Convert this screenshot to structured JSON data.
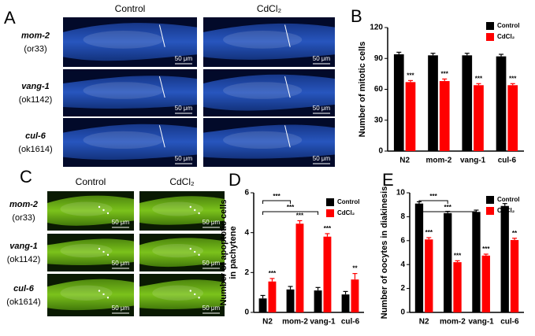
{
  "panels": {
    "A": {
      "label": "A",
      "columns": [
        "Control",
        "CdCl₂"
      ],
      "scale_bar": "50 μm",
      "rows": [
        {
          "gene": "mom-2",
          "allele": "(or33)"
        },
        {
          "gene": "vang-1",
          "allele": "(ok1142)"
        },
        {
          "gene": "cul-6",
          "allele": "(ok1614)"
        }
      ]
    },
    "C": {
      "label": "C",
      "columns": [
        "Control",
        "CdCl₂"
      ],
      "scale_bar": "50 μm",
      "rows": [
        {
          "gene": "mom-2",
          "allele": "(or33)"
        },
        {
          "gene": "vang-1",
          "allele": "(ok1142)"
        },
        {
          "gene": "cul-6",
          "allele": "(ok1614)"
        }
      ]
    }
  },
  "chart_data": [
    {
      "type": "bar",
      "panel": "B",
      "y_label": "Number of mitotic cells",
      "categories": [
        "N2",
        "mom-2",
        "vang-1",
        "cul-6"
      ],
      "series": [
        {
          "name": "Control",
          "color": "#000000",
          "values": [
            94,
            93,
            93,
            92
          ],
          "errors": [
            2,
            2,
            2,
            2
          ]
        },
        {
          "name": "CdCl₂",
          "color": "#ff0000",
          "values": [
            67,
            68,
            64,
            64
          ],
          "errors": [
            1.5,
            2,
            1.5,
            1.5
          ],
          "significance": [
            "***",
            "***",
            "***",
            "***"
          ]
        }
      ],
      "ylim": [
        0,
        120
      ],
      "yticks": [
        0,
        30,
        60,
        90,
        120
      ],
      "legend": "top-right"
    },
    {
      "type": "bar",
      "panel": "D",
      "y_label": [
        "Number of apoptotic cells",
        "in pachytene"
      ],
      "categories": [
        "N2",
        "mom-2",
        "vang-1",
        "cul-6"
      ],
      "series": [
        {
          "name": "Control",
          "color": "#000000",
          "values": [
            0.7,
            1.15,
            1.1,
            0.9
          ],
          "errors": [
            0.15,
            0.15,
            0.15,
            0.15
          ]
        },
        {
          "name": "CdCl₂",
          "color": "#ff0000",
          "values": [
            1.55,
            4.45,
            3.8,
            1.65
          ],
          "errors": [
            0.15,
            0.15,
            0.15,
            0.3
          ],
          "significance": [
            "***",
            "***",
            "***",
            "**"
          ]
        }
      ],
      "comparisons": [
        {
          "label": "***",
          "between": [
            "N2",
            "mom-2"
          ]
        },
        {
          "label": "***",
          "between": [
            "N2",
            "vang-1"
          ]
        }
      ],
      "ylim": [
        0,
        6
      ],
      "yticks": [
        0,
        2,
        4,
        6
      ],
      "legend": "top-right"
    },
    {
      "type": "bar",
      "panel": "E",
      "y_label": "Number of oocytes in diakinesis",
      "categories": [
        "N2",
        "mom-2",
        "vang-1",
        "cul-6"
      ],
      "series": [
        {
          "name": "Control",
          "color": "#000000",
          "values": [
            9.1,
            8.3,
            8.4,
            8.9
          ],
          "errors": [
            0.15,
            0.15,
            0.15,
            0.2
          ]
        },
        {
          "name": "CdCl₂",
          "color": "#ff0000",
          "values": [
            6.1,
            4.2,
            4.75,
            6.05
          ],
          "errors": [
            0.15,
            0.12,
            0.12,
            0.15
          ],
          "significance": [
            "***",
            "***",
            "***",
            "**"
          ]
        }
      ],
      "comparisons": [
        {
          "label": "***",
          "between": [
            "N2",
            "mom-2"
          ]
        },
        {
          "label": "***",
          "between": [
            "N2",
            "vang-1"
          ]
        }
      ],
      "ylim": [
        0,
        10
      ],
      "yticks": [
        0,
        2,
        4,
        6,
        8,
        10
      ],
      "legend": "top-right"
    }
  ]
}
